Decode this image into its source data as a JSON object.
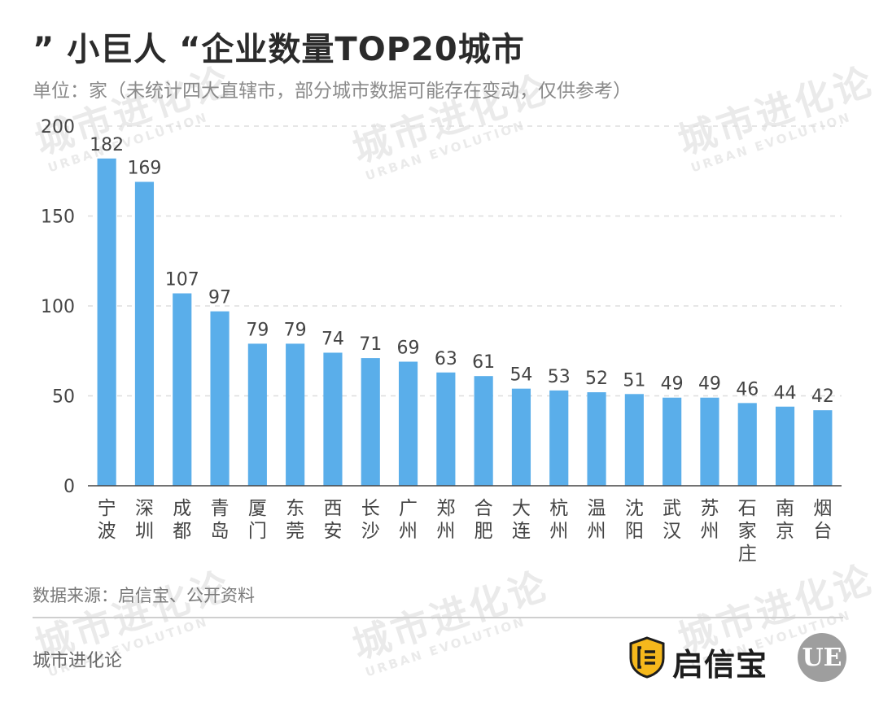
{
  "header": {
    "title": "” 小巨人 “企业数量TOP20城市",
    "subtitle": "单位：家（未统计四大直辖市，部分城市数据可能存在变动，仅供参考）"
  },
  "watermark": {
    "cn": "城市进化论",
    "en": "URBAN EVOLUTION"
  },
  "footer": {
    "source": "数据来源：启信宝、公开资料",
    "brand": "城市进化论",
    "partner_name": "启信宝",
    "partner_logo_icon": "shield-bracket-icon",
    "ue_logo_text": "UE"
  },
  "colors": {
    "bar": "#5aaeea",
    "axis": "#444444",
    "grid": "#dddddd",
    "label": "#444444"
  },
  "chart_data": {
    "type": "bar",
    "categories": [
      "宁波",
      "深圳",
      "成都",
      "青岛",
      "厦门",
      "东莞",
      "西安",
      "长沙",
      "广州",
      "郑州",
      "合肥",
      "大连",
      "杭州",
      "温州",
      "沈阳",
      "武汉",
      "苏州",
      "石家庄",
      "南京",
      "烟台"
    ],
    "values": [
      182,
      169,
      107,
      97,
      79,
      79,
      74,
      71,
      69,
      63,
      61,
      54,
      53,
      52,
      51,
      49,
      49,
      46,
      44,
      42
    ],
    "yticks": [
      0,
      50,
      100,
      150,
      200
    ],
    "ylim": [
      0,
      200
    ],
    "grid": true,
    "data_labels": true
  }
}
